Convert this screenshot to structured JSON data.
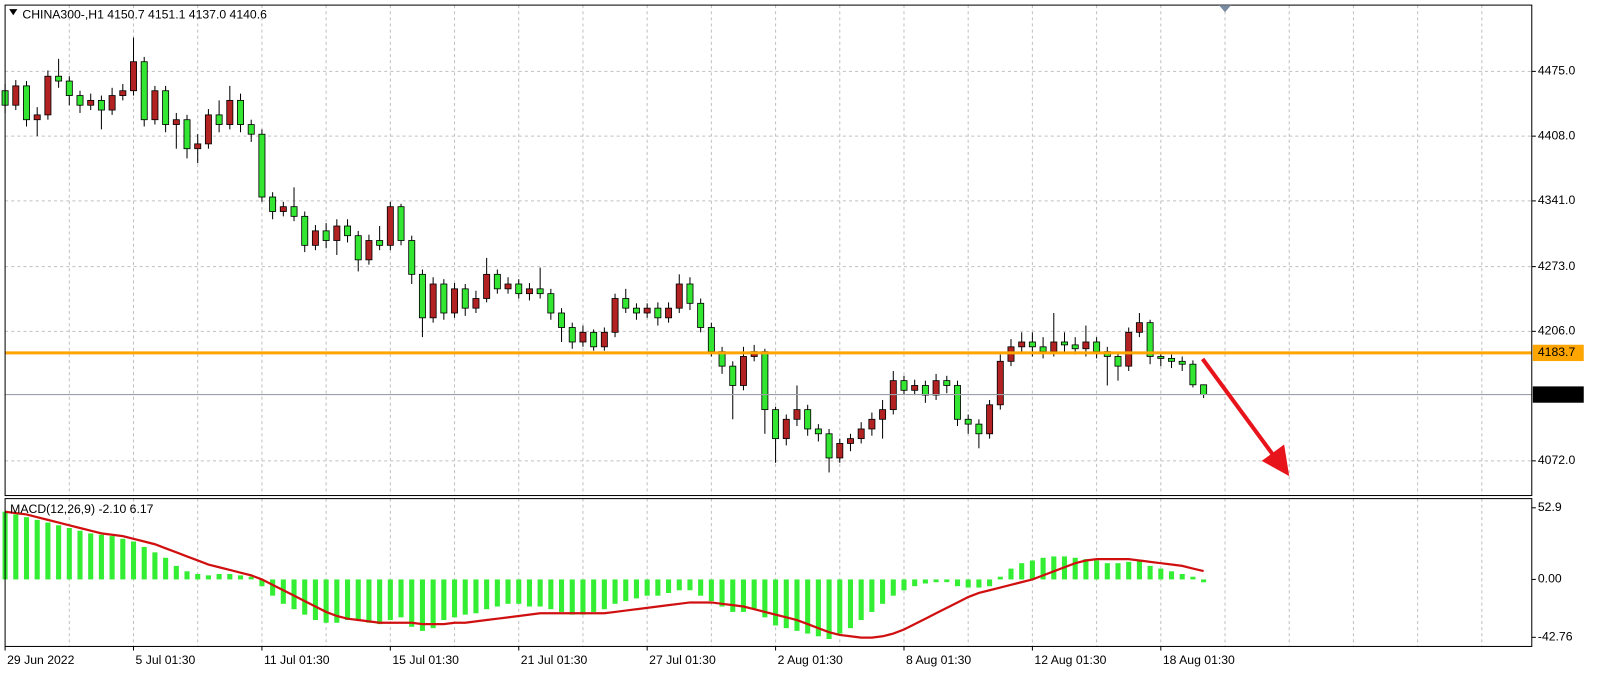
{
  "chart_data": [
    {
      "type": "candlestick",
      "title": "CHINA300-,H1  4150.7 4151.1 4137.0 4140.6",
      "categories": [
        "29 Jun 2022",
        null,
        null,
        null,
        null,
        null,
        null,
        null,
        null,
        null,
        null,
        null,
        "5 Jul 01:30",
        null,
        null,
        null,
        null,
        null,
        null,
        null,
        null,
        null,
        null,
        null,
        "11 Jul 01:30",
        null,
        null,
        null,
        null,
        null,
        null,
        null,
        null,
        null,
        null,
        null,
        "15 Jul 01:30",
        null,
        null,
        null,
        null,
        null,
        null,
        null,
        null,
        null,
        null,
        null,
        "21 Jul 01:30",
        null,
        null,
        null,
        null,
        null,
        null,
        null,
        null,
        null,
        null,
        null,
        "27 Jul 01:30",
        null,
        null,
        null,
        null,
        null,
        null,
        null,
        null,
        null,
        null,
        null,
        "2 Aug 01:30",
        null,
        null,
        null,
        null,
        null,
        null,
        null,
        null,
        null,
        null,
        null,
        "8 Aug 01:30",
        null,
        null,
        null,
        null,
        null,
        null,
        null,
        null,
        null,
        null,
        null,
        "12 Aug 01:30",
        null,
        null,
        null,
        null,
        null,
        null,
        null,
        null,
        null,
        null,
        null,
        "18 Aug 01:30",
        null,
        null,
        null,
        null
      ],
      "open": [
        4455,
        4440,
        4460,
        4425,
        4430,
        4470,
        4465,
        4450,
        4440,
        4445,
        4435,
        4450,
        4455,
        4485,
        4425,
        4455,
        4420,
        4425,
        4395,
        4400,
        4430,
        4420,
        4445,
        4420,
        4410,
        4345,
        4330,
        4335,
        4325,
        4295,
        4310,
        4300,
        4315,
        4305,
        4280,
        4300,
        4295,
        4335,
        4300,
        4265,
        4220,
        4255,
        4225,
        4250,
        4230,
        4240,
        4265,
        4250,
        4255,
        4245,
        4250,
        4245,
        4225,
        4210,
        4195,
        4205,
        4190,
        4205,
        4240,
        4230,
        4225,
        4230,
        4220,
        4230,
        4255,
        4235,
        4210,
        4185,
        4170,
        4150,
        4180,
        4185,
        4125,
        4095,
        4115,
        4125,
        4105,
        4100,
        4075,
        4090,
        4095,
        4105,
        4115,
        4125,
        4155,
        4145,
        4150,
        4140,
        4155,
        4150,
        4115,
        4110,
        4100,
        4130,
        4175,
        4190,
        4195,
        4190,
        4185,
        4195,
        4192,
        4188,
        4195,
        4185,
        4180,
        4170,
        4205,
        4215,
        4180,
        4178,
        4175,
        4172,
        4150.7
      ],
      "high": [
        4462,
        4466,
        4465,
        4438,
        4476,
        4488,
        4470,
        4455,
        4452,
        4450,
        4458,
        4462,
        4510,
        4490,
        4460,
        4460,
        4432,
        4430,
        4410,
        4436,
        4445,
        4460,
        4452,
        4425,
        4415,
        4350,
        4340,
        4355,
        4330,
        4316,
        4318,
        4322,
        4322,
        4310,
        4306,
        4315,
        4340,
        4338,
        4305,
        4270,
        4262,
        4260,
        4256,
        4255,
        4248,
        4282,
        4270,
        4262,
        4260,
        4256,
        4272,
        4250,
        4230,
        4215,
        4212,
        4208,
        4210,
        4245,
        4250,
        4235,
        4235,
        4236,
        4236,
        4265,
        4262,
        4240,
        4215,
        4190,
        4175,
        4190,
        4192,
        4188,
        4128,
        4120,
        4150,
        4130,
        4110,
        4105,
        4095,
        4100,
        4112,
        4122,
        4135,
        4165,
        4160,
        4156,
        4155,
        4162,
        4160,
        4155,
        4120,
        4115,
        4135,
        4182,
        4198,
        4205,
        4205,
        4200,
        4225,
        4205,
        4200,
        4212,
        4200,
        4190,
        4185,
        4210,
        4225,
        4218,
        4185,
        4182,
        4180,
        4176,
        4151.1
      ],
      "low": [
        4432,
        4435,
        4418,
        4408,
        4425,
        4458,
        4440,
        4432,
        4435,
        4415,
        4430,
        4445,
        4450,
        4418,
        4420,
        4412,
        4395,
        4385,
        4380,
        4395,
        4412,
        4415,
        4412,
        4402,
        4340,
        4322,
        4325,
        4320,
        4288,
        4290,
        4292,
        4285,
        4298,
        4268,
        4275,
        4290,
        4290,
        4295,
        4255,
        4200,
        4215,
        4218,
        4220,
        4222,
        4225,
        4236,
        4245,
        4245,
        4240,
        4238,
        4240,
        4218,
        4195,
        4188,
        4190,
        4186,
        4186,
        4200,
        4225,
        4218,
        4220,
        4212,
        4215,
        4225,
        4228,
        4205,
        4180,
        4162,
        4115,
        4145,
        4175,
        4100,
        4070,
        4088,
        4108,
        4098,
        4092,
        4060,
        4070,
        4082,
        4090,
        4098,
        4095,
        4120,
        4140,
        4140,
        4132,
        4135,
        4142,
        4108,
        4100,
        4085,
        4095,
        4125,
        4170,
        4185,
        4180,
        4178,
        4180,
        4185,
        4182,
        4180,
        4178,
        4150,
        4155,
        4165,
        4200,
        4172,
        4170,
        4168,
        4165,
        4148,
        4137
      ],
      "close": [
        4440,
        4460,
        4425,
        4430,
        4470,
        4465,
        4450,
        4440,
        4445,
        4435,
        4450,
        4455,
        4485,
        4425,
        4455,
        4420,
        4425,
        4395,
        4400,
        4430,
        4420,
        4445,
        4420,
        4410,
        4345,
        4330,
        4335,
        4325,
        4295,
        4310,
        4300,
        4315,
        4305,
        4280,
        4300,
        4295,
        4335,
        4300,
        4265,
        4220,
        4255,
        4225,
        4250,
        4230,
        4240,
        4265,
        4250,
        4255,
        4245,
        4250,
        4245,
        4225,
        4210,
        4195,
        4205,
        4190,
        4205,
        4240,
        4230,
        4225,
        4230,
        4220,
        4230,
        4255,
        4235,
        4210,
        4185,
        4170,
        4150,
        4180,
        4185,
        4125,
        4095,
        4115,
        4125,
        4105,
        4100,
        4075,
        4090,
        4095,
        4105,
        4115,
        4125,
        4155,
        4145,
        4150,
        4140,
        4155,
        4150,
        4115,
        4110,
        4100,
        4130,
        4175,
        4190,
        4195,
        4190,
        4185,
        4195,
        4192,
        4188,
        4195,
        4185,
        4180,
        4170,
        4205,
        4215,
        4180,
        4178,
        4175,
        4172,
        4150.7,
        4140.6
      ],
      "up_color": "#b22222",
      "down_color": "#32e632",
      "ylim": [
        4036.1,
        4543.6
      ],
      "yticks": [
        {
          "value": 4475,
          "label": "4475.0"
        },
        {
          "value": 4408,
          "label": "4408.0"
        },
        {
          "value": 4341,
          "label": "4341.0"
        },
        {
          "value": 4273,
          "label": "4273.0"
        },
        {
          "value": 4206,
          "label": "4206.0"
        },
        {
          "value": 4072,
          "label": "4072.0"
        }
      ],
      "hline": {
        "value": 4183.7,
        "color": "#ffa500"
      },
      "grid": true
    },
    {
      "type": "macd",
      "title": "MACD(12,26,9) -2.10 6.17",
      "histogram": {
        "color": "#33ee33",
        "values": [
          50,
          48,
          46,
          44,
          42,
          40,
          38,
          36,
          34,
          33,
          32,
          30,
          28,
          24,
          20,
          16,
          10,
          6,
          4,
          3,
          4,
          4,
          3,
          2,
          -5,
          -12,
          -18,
          -22,
          -26,
          -30,
          -32,
          -32,
          -30,
          -30,
          -32,
          -33,
          -30,
          -28,
          -35,
          -38,
          -36,
          -30,
          -28,
          -26,
          -25,
          -22,
          -20,
          -18,
          -18,
          -20,
          -20,
          -22,
          -24,
          -26,
          -26,
          -24,
          -22,
          -18,
          -16,
          -14,
          -12,
          -12,
          -10,
          -8,
          -8,
          -12,
          -16,
          -20,
          -24,
          -24,
          -22,
          -28,
          -34,
          -36,
          -38,
          -40,
          -42,
          -44,
          -40,
          -36,
          -30,
          -24,
          -18,
          -12,
          -8,
          -5,
          -3,
          -2,
          -2,
          -5,
          -6,
          -6,
          -5,
          2,
          8,
          12,
          14,
          16,
          17,
          17,
          16,
          15,
          14,
          12,
          12,
          13,
          14,
          10,
          8,
          6,
          4,
          2,
          -2.1
        ]
      },
      "signal": {
        "color": "#d01010",
        "values": [
          50,
          49,
          48,
          46,
          44,
          42,
          40,
          38,
          36,
          34,
          33,
          32,
          30,
          28,
          26,
          23,
          20,
          17,
          14,
          11,
          9,
          7,
          5,
          3,
          0,
          -4,
          -8,
          -12,
          -16,
          -20,
          -24,
          -27,
          -29,
          -30,
          -31,
          -32,
          -32,
          -32,
          -32,
          -33,
          -33,
          -33,
          -32,
          -32,
          -31,
          -30,
          -29,
          -28,
          -27,
          -26,
          -25,
          -25,
          -25,
          -25,
          -25,
          -25,
          -25,
          -24,
          -23,
          -22,
          -21,
          -20,
          -19,
          -18,
          -17,
          -17,
          -17,
          -18,
          -19,
          -20,
          -22,
          -24,
          -26,
          -28,
          -30,
          -33,
          -36,
          -39,
          -41,
          -42,
          -43,
          -43,
          -42,
          -40,
          -37,
          -33,
          -29,
          -25,
          -21,
          -17,
          -13,
          -10,
          -8,
          -6,
          -4,
          -2,
          0,
          3,
          6,
          9,
          12,
          14,
          15,
          15,
          15,
          15,
          14,
          13,
          12,
          11,
          10,
          8,
          6.17
        ]
      },
      "ylim": [
        -49.5,
        59.7
      ],
      "yticks": [
        52.9,
        {
          "value": 0,
          "label": "0.00"
        },
        -42.76
      ]
    }
  ]
}
